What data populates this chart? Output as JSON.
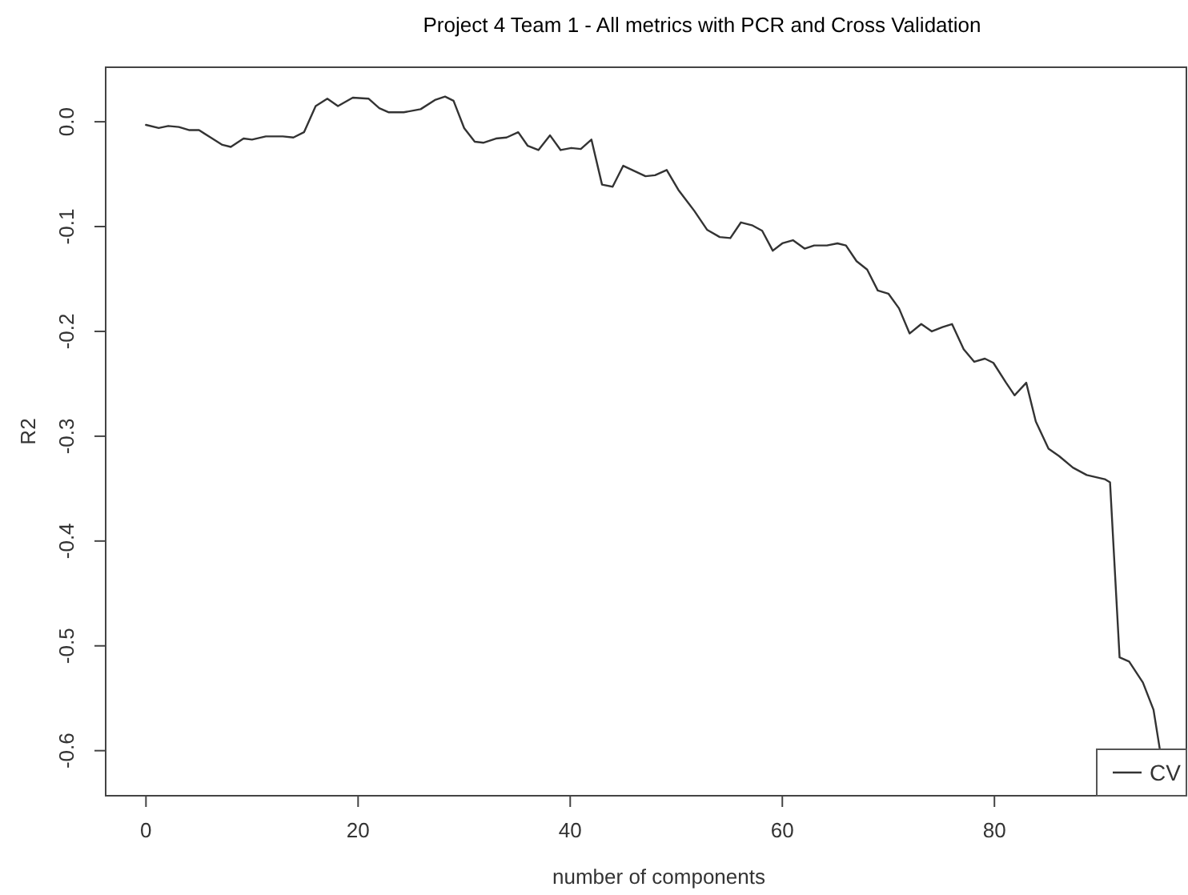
{
  "chart_data": {
    "type": "line",
    "title": "Project 4 Team 1 - All metrics with PCR and Cross Validation",
    "xlabel": "number of components",
    "ylabel": "R2",
    "xlim": [
      -3.8,
      98.1
    ],
    "ylim": [
      -0.643,
      0.052
    ],
    "xticks": [
      0,
      20,
      40,
      60,
      80
    ],
    "yticks": [
      {
        "value": 0,
        "label": "0.0"
      },
      {
        "value": -0.1,
        "label": "-0.1"
      },
      {
        "value": -0.2,
        "label": "-0.2"
      },
      {
        "value": -0.3,
        "label": "-0.3"
      },
      {
        "value": -0.4,
        "label": "-0.4"
      },
      {
        "value": -0.5,
        "label": "-0.5"
      },
      {
        "value": -0.6,
        "label": "-0.6"
      }
    ],
    "grid": false,
    "legend": "bottom right",
    "marker": "none",
    "line_style": "solid",
    "series": [
      {
        "name": "CV",
        "color": "#333333",
        "x": [
          0,
          1.2,
          2.1,
          3.1,
          4.1,
          5,
          6.1,
          7.2,
          8,
          9.2,
          10,
          11.3,
          12.9,
          13.9,
          14.9,
          16,
          17.1,
          18.1,
          19.5,
          21,
          22,
          22.9,
          24.3,
          25.9,
          27.3,
          28.2,
          29,
          30,
          31,
          31.8,
          33,
          34,
          35.1,
          36,
          37,
          38.1,
          39.1,
          40.1,
          41,
          42,
          43,
          44,
          45,
          47.1,
          48,
          49.1,
          50.2,
          51.7,
          52.9,
          54.1,
          55.1,
          56.1,
          57.2,
          58.1,
          59.1,
          60,
          61,
          62.1,
          63,
          64.2,
          65.2,
          66,
          67,
          68,
          69,
          70,
          71,
          72,
          73.1,
          74.1,
          75.1,
          76,
          77.1,
          78.1,
          79.1,
          79.9,
          81.1,
          81.9,
          83,
          83.9,
          85.1,
          86.1,
          87.4,
          88.7,
          90.4,
          90.9,
          91.8,
          92.7,
          94,
          95,
          95.6
        ],
        "values": [
          -0.003,
          -0.006,
          -0.004,
          -0.005,
          -0.008,
          -0.008,
          -0.015,
          -0.022,
          -0.024,
          -0.016,
          -0.017,
          -0.014,
          -0.014,
          -0.015,
          -0.01,
          0.015,
          0.022,
          0.015,
          0.023,
          0.022,
          0.013,
          0.009,
          0.009,
          0.012,
          0.021,
          0.024,
          0.02,
          -0.006,
          -0.019,
          -0.02,
          -0.016,
          -0.015,
          -0.01,
          -0.023,
          -0.027,
          -0.013,
          -0.027,
          -0.025,
          -0.026,
          -0.017,
          -0.06,
          -0.062,
          -0.042,
          -0.052,
          -0.051,
          -0.046,
          -0.065,
          -0.085,
          -0.103,
          -0.11,
          -0.111,
          -0.096,
          -0.099,
          -0.104,
          -0.123,
          -0.116,
          -0.113,
          -0.121,
          -0.118,
          -0.118,
          -0.116,
          -0.118,
          -0.133,
          -0.141,
          -0.161,
          -0.164,
          -0.178,
          -0.202,
          -0.193,
          -0.2,
          -0.196,
          -0.193,
          -0.217,
          -0.229,
          -0.226,
          -0.23,
          -0.249,
          -0.261,
          -0.249,
          -0.286,
          -0.312,
          -0.319,
          -0.33,
          -0.337,
          -0.341,
          -0.344,
          -0.511,
          -0.515,
          -0.535,
          -0.561,
          -0.599
        ]
      }
    ]
  }
}
